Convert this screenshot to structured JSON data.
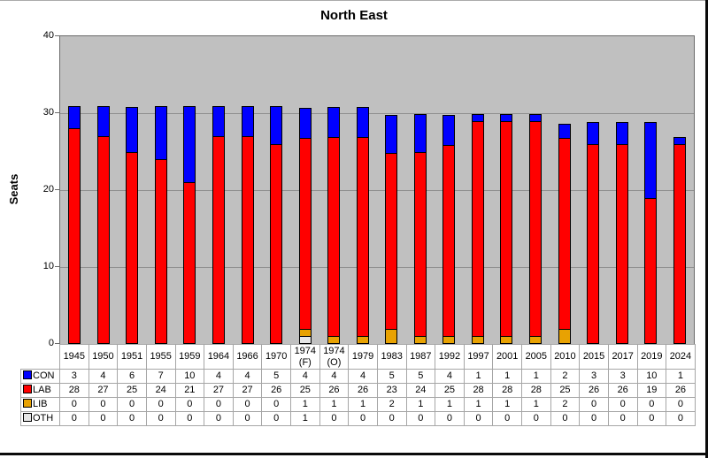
{
  "title": "North East",
  "ylabel": "Seats",
  "chart_data": {
    "type": "bar",
    "stacked": true,
    "title": "North East",
    "ylabel": "Seats",
    "xlabel": "",
    "ylim": [
      0,
      40
    ],
    "y_ticks": [
      0,
      10,
      20,
      30,
      40
    ],
    "grid": true,
    "plot_bg_color": "#C0C0C0",
    "legend_position": "table-left",
    "categories": [
      "1945",
      "1950",
      "1951",
      "1955",
      "1959",
      "1964",
      "1966",
      "1970",
      "1974 (F)",
      "1974 (O)",
      "1979",
      "1983",
      "1987",
      "1992",
      "1997",
      "2001",
      "2005",
      "2010",
      "2015",
      "2017",
      "2019",
      "2024"
    ],
    "series": [
      {
        "name": "CON",
        "color": "#0000FF",
        "values": [
          3,
          4,
          6,
          7,
          10,
          4,
          4,
          5,
          4,
          4,
          4,
          5,
          5,
          4,
          1,
          1,
          1,
          2,
          3,
          3,
          10,
          1
        ]
      },
      {
        "name": "LAB",
        "color": "#FF0000",
        "values": [
          28,
          27,
          25,
          24,
          21,
          27,
          27,
          26,
          25,
          26,
          26,
          23,
          24,
          25,
          28,
          28,
          28,
          25,
          26,
          26,
          19,
          26
        ]
      },
      {
        "name": "LIB",
        "color": "#E8A202",
        "values": [
          0,
          0,
          0,
          0,
          0,
          0,
          0,
          0,
          1,
          1,
          1,
          2,
          1,
          1,
          1,
          1,
          1,
          2,
          0,
          0,
          0,
          0
        ]
      },
      {
        "name": "OTH",
        "color": "#E6E6E6",
        "values": [
          0,
          0,
          0,
          0,
          0,
          0,
          0,
          0,
          1,
          0,
          0,
          0,
          0,
          0,
          0,
          0,
          0,
          0,
          0,
          0,
          0,
          0
        ]
      }
    ],
    "stack_order_bottom_to_top": [
      "OTH",
      "LIB",
      "LAB",
      "CON"
    ]
  }
}
